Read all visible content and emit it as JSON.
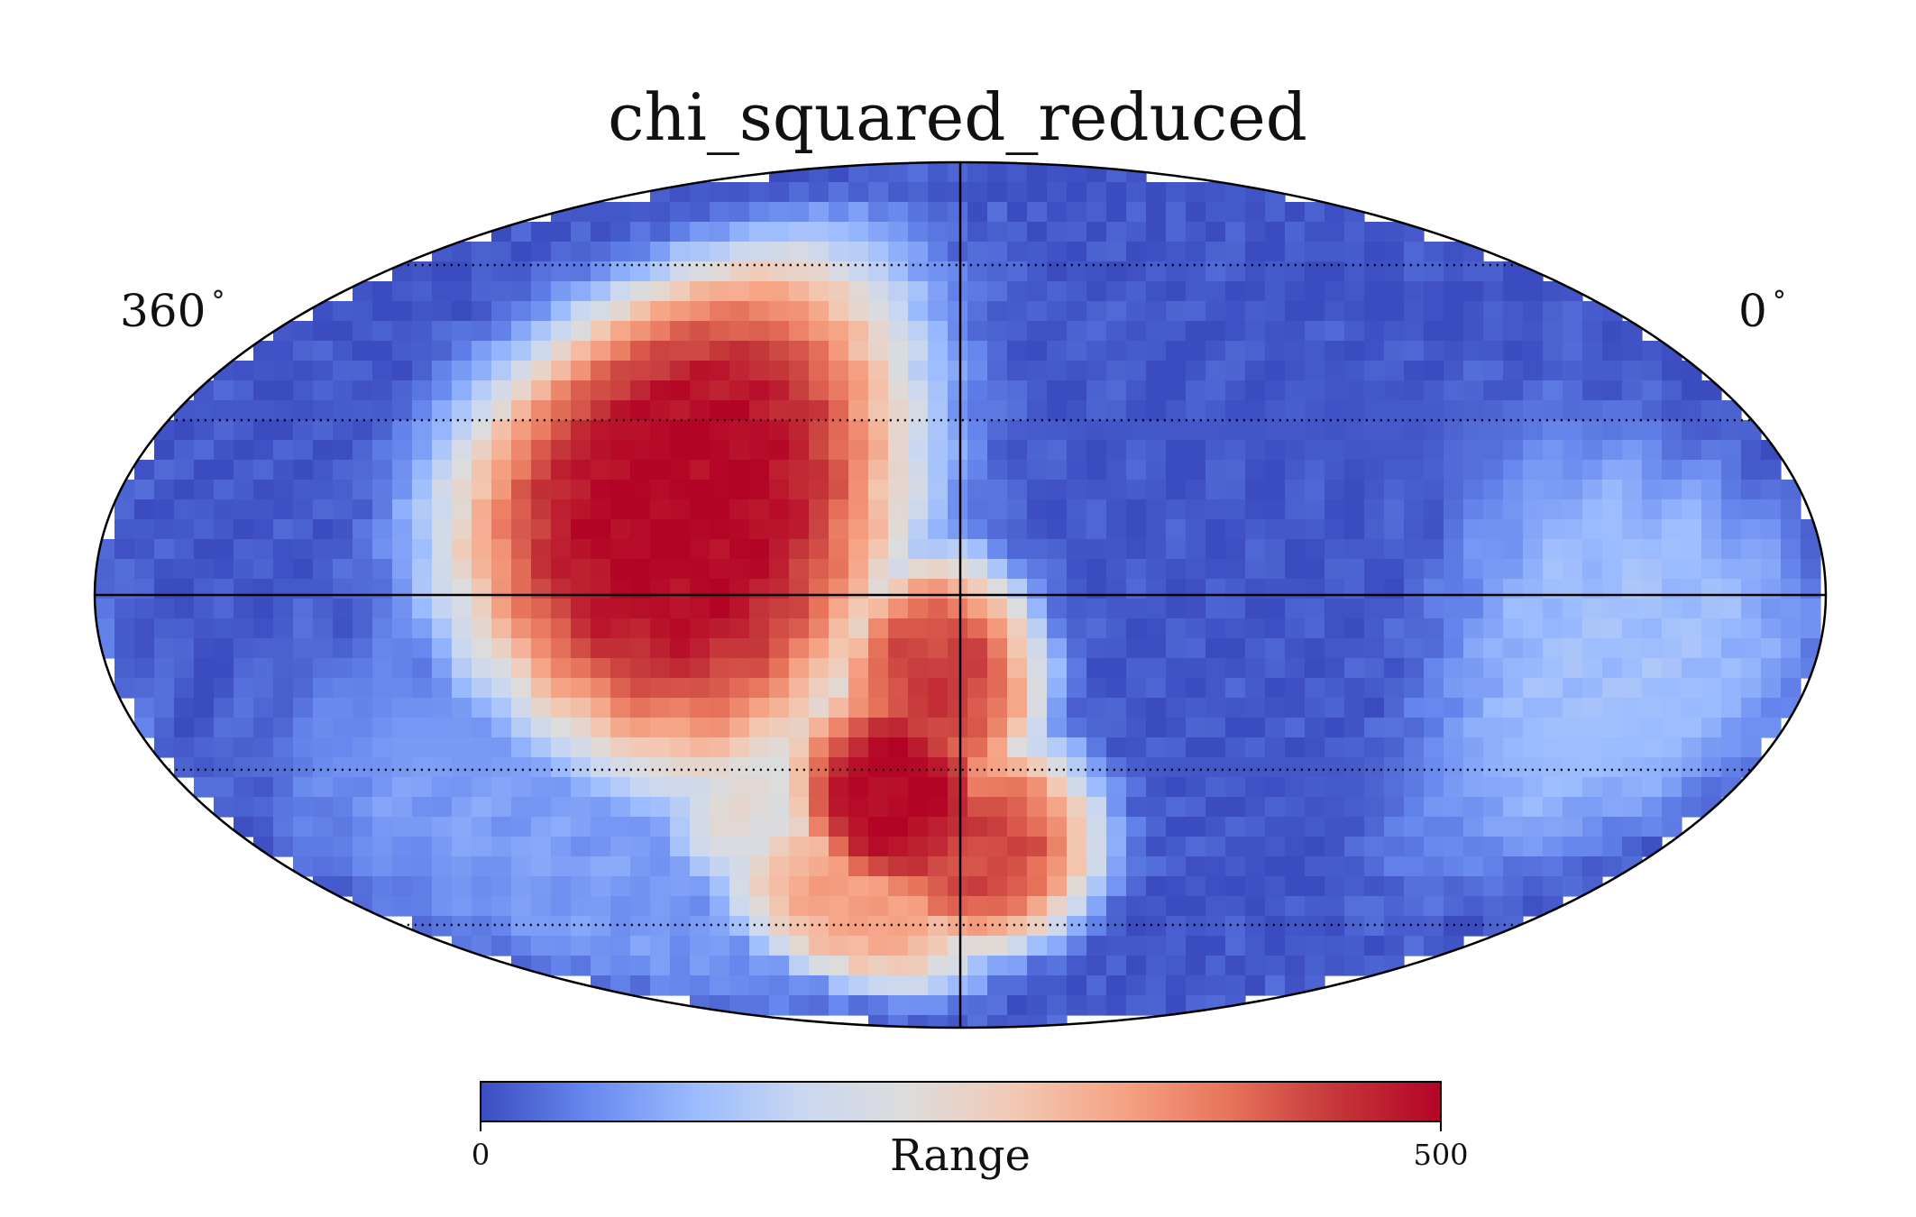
{
  "chart_data": {
    "type": "heatmap",
    "projection": "mollweide",
    "title": "chi_squared_reduced",
    "colormap": "coolwarm",
    "longitude_labels": {
      "left": "360",
      "right": "0",
      "unit_symbol": "°"
    },
    "graticule": {
      "meridian_step_deg": 30,
      "parallel_step_deg": 30,
      "style": "dotted"
    },
    "colorbar": {
      "label": "Range",
      "min": 0,
      "max": 500,
      "tick_labels": [
        "0",
        "500"
      ],
      "placement": "bottom"
    },
    "regions": [
      {
        "description_lon_lat_deg": [
          240,
          15
        ],
        "value": 500
      },
      {
        "description_lon_lat_deg": [
          195,
          -35
        ],
        "value": 500
      },
      {
        "description_lon_lat_deg": [
          175,
          -45
        ],
        "value": 430
      },
      {
        "description_lon_lat_deg": [
          210,
          -55
        ],
        "value": 330
      },
      {
        "description_lon_lat_deg": [
          225,
          -40
        ],
        "value": 230
      },
      {
        "description_lon_lat_deg": [
          185,
          -15
        ],
        "value": 440
      },
      {
        "description_lon_lat_deg": [
          40,
          -10
        ],
        "value": 120
      },
      {
        "description_lon_lat_deg": [
          290,
          -45
        ],
        "value": 80
      }
    ],
    "background_value": 10
  },
  "colors": {
    "cmap_stops": [
      "#3b4cc0",
      "#6788ee",
      "#9abbff",
      "#c9d7f0",
      "#dddcdc",
      "#f2c9b4",
      "#f6a385",
      "#e7745b",
      "#c5373a",
      "#b40426"
    ],
    "frame": "#000000"
  }
}
